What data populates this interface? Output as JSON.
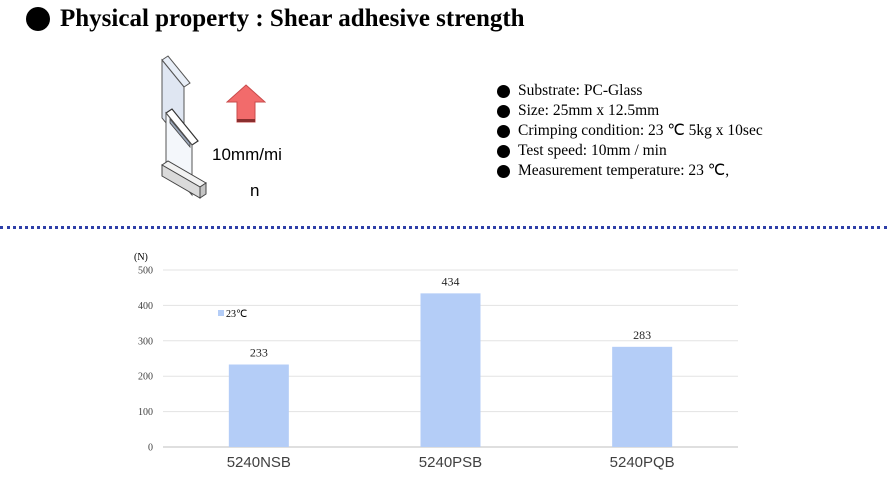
{
  "header": {
    "title": "Physical property : Shear adhesive strength"
  },
  "diagram": {
    "speed_label_line1": "10mm/mi",
    "speed_label_line2": "n",
    "arrow_color": "#f26b6b"
  },
  "conditions": [
    "Substrate: PC-Glass",
    "Size: 25mm x 12.5mm",
    "Crimping condition: 23 ℃ 5kg x 10sec",
    "Test speed: 10mm / min",
    "Measurement temperature: 23 ℃,"
  ],
  "chart_data": {
    "type": "bar",
    "unit_label": "(N)",
    "categories": [
      "5240NSB",
      "5240PSB",
      "5240PQB"
    ],
    "series": [
      {
        "name": "23℃",
        "values": [
          233,
          434,
          283
        ],
        "color": "#b4cdf7"
      }
    ],
    "ylim": [
      0,
      500
    ],
    "yticks": [
      0,
      100,
      200,
      300,
      400,
      500
    ],
    "grid": true,
    "legend": "top-left"
  }
}
